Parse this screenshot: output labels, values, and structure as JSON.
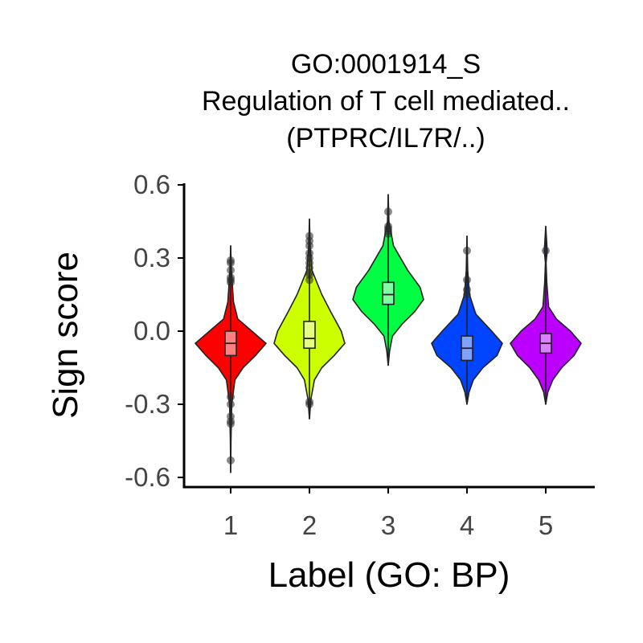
{
  "chart_data": {
    "type": "violin",
    "title": [
      "GO:0001914_S",
      "Regulation of T cell mediated..",
      "(PTPRC/IL7R/..)"
    ],
    "xlabel": "Label (GO: BP)",
    "ylabel": "Sign score",
    "ylim": [
      -0.63,
      0.6
    ],
    "yticks": [
      "0.6",
      "0.3",
      "0.0",
      "-0.3",
      "-0.6"
    ],
    "ytick_values": [
      0.6,
      0.3,
      0.0,
      -0.3,
      -0.6
    ],
    "categories": [
      "1",
      "2",
      "3",
      "4",
      "5"
    ],
    "grid": false,
    "legend": "none",
    "series": [
      {
        "category": "1",
        "color": "#FF0000",
        "box_color": "#FF8080",
        "min": -0.58,
        "max": 0.35,
        "q1": -0.1,
        "median": -0.05,
        "q3": 0.0,
        "whisker_low": -0.22,
        "whisker_high": 0.12,
        "profile": [
          [
            0.35,
            0.0
          ],
          [
            0.25,
            0.02
          ],
          [
            0.12,
            0.08
          ],
          [
            0.05,
            0.2
          ],
          [
            0.0,
            0.6
          ],
          [
            -0.05,
            1.0
          ],
          [
            -0.1,
            0.7
          ],
          [
            -0.15,
            0.35
          ],
          [
            -0.2,
            0.12
          ],
          [
            -0.3,
            0.03
          ],
          [
            -0.45,
            0.01
          ],
          [
            -0.58,
            0.0
          ]
        ],
        "outliers": [
          0.29,
          0.28,
          0.25,
          0.22,
          0.21,
          0.2,
          -0.27,
          -0.3,
          -0.35,
          -0.37,
          -0.38,
          -0.53
        ]
      },
      {
        "category": "2",
        "color": "#CCFF00",
        "box_color": "#E6FF80",
        "min": -0.36,
        "max": 0.46,
        "q1": -0.07,
        "median": -0.03,
        "q3": 0.04,
        "whisker_low": -0.2,
        "whisker_high": 0.15,
        "profile": [
          [
            0.46,
            0.0
          ],
          [
            0.35,
            0.02
          ],
          [
            0.25,
            0.07
          ],
          [
            0.15,
            0.35
          ],
          [
            0.08,
            0.6
          ],
          [
            0.0,
            0.9
          ],
          [
            -0.05,
            1.0
          ],
          [
            -0.1,
            0.7
          ],
          [
            -0.15,
            0.35
          ],
          [
            -0.2,
            0.14
          ],
          [
            -0.28,
            0.04
          ],
          [
            -0.36,
            0.0
          ]
        ],
        "outliers": [
          0.39,
          0.37,
          0.35,
          0.32,
          0.3,
          0.28,
          0.26,
          0.24,
          0.23,
          0.21,
          -0.29,
          -0.3
        ]
      },
      {
        "category": "3",
        "color": "#00FF44",
        "box_color": "#80FFA2",
        "min": -0.14,
        "max": 0.56,
        "q1": 0.11,
        "median": 0.15,
        "q3": 0.2,
        "whisker_low": 0.02,
        "whisker_high": 0.31,
        "profile": [
          [
            0.56,
            0.0
          ],
          [
            0.45,
            0.02
          ],
          [
            0.35,
            0.15
          ],
          [
            0.25,
            0.55
          ],
          [
            0.18,
            0.9
          ],
          [
            0.13,
            1.0
          ],
          [
            0.08,
            0.75
          ],
          [
            0.03,
            0.4
          ],
          [
            -0.02,
            0.12
          ],
          [
            -0.08,
            0.04
          ],
          [
            -0.14,
            0.0
          ]
        ],
        "outliers": [
          0.49,
          0.43,
          0.42,
          0.41,
          0.4
        ]
      },
      {
        "category": "4",
        "color": "#0044FF",
        "box_color": "#80A2FF",
        "min": -0.3,
        "max": 0.39,
        "q1": -0.12,
        "median": -0.07,
        "q3": -0.02,
        "whisker_low": -0.24,
        "whisker_high": 0.11,
        "profile": [
          [
            0.39,
            0.0
          ],
          [
            0.25,
            0.02
          ],
          [
            0.15,
            0.07
          ],
          [
            0.07,
            0.25
          ],
          [
            0.0,
            0.7
          ],
          [
            -0.05,
            1.0
          ],
          [
            -0.1,
            0.85
          ],
          [
            -0.15,
            0.45
          ],
          [
            -0.2,
            0.18
          ],
          [
            -0.25,
            0.06
          ],
          [
            -0.3,
            0.0
          ]
        ],
        "outliers": [
          0.33,
          0.21,
          0.17,
          0.15
        ]
      },
      {
        "category": "5",
        "color": "#BB00FF",
        "box_color": "#DD80FF",
        "min": -0.3,
        "max": 0.43,
        "q1": -0.09,
        "median": -0.05,
        "q3": -0.01,
        "whisker_low": -0.22,
        "whisker_high": 0.12,
        "profile": [
          [
            0.43,
            0.0
          ],
          [
            0.33,
            0.04
          ],
          [
            0.28,
            0.01
          ],
          [
            0.2,
            0.03
          ],
          [
            0.1,
            0.08
          ],
          [
            0.05,
            0.3
          ],
          [
            0.0,
            0.7
          ],
          [
            -0.05,
            1.0
          ],
          [
            -0.1,
            0.8
          ],
          [
            -0.15,
            0.45
          ],
          [
            -0.2,
            0.2
          ],
          [
            -0.25,
            0.06
          ],
          [
            -0.3,
            0.0
          ]
        ],
        "outliers": [
          0.33
        ]
      }
    ]
  }
}
